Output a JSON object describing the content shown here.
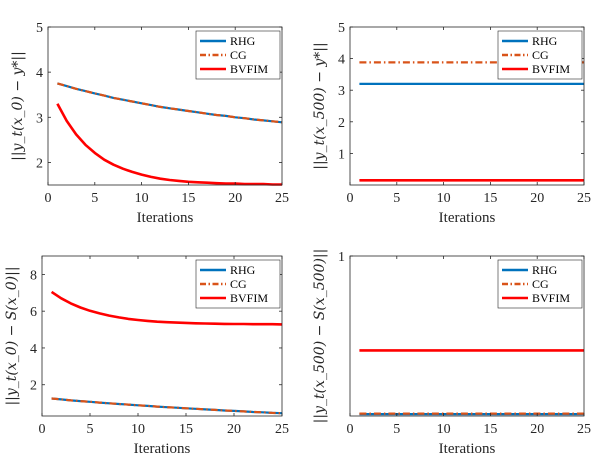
{
  "colors": {
    "RHG": "#0072BD",
    "CG": "#D95319",
    "BVFIM": "#FF0000"
  },
  "chart_data": [
    {
      "type": "line",
      "xlabel": "Iterations",
      "ylabel": "||y_t(x_0) − y*||",
      "xlim": [
        0,
        25
      ],
      "ylim": [
        1.5,
        5
      ],
      "xticks": [
        0,
        5,
        10,
        15,
        20,
        25
      ],
      "yticks": [
        2,
        3,
        4,
        5
      ],
      "legend": "top-right",
      "x": [
        1,
        2,
        3,
        4,
        5,
        6,
        7,
        8,
        9,
        10,
        11,
        12,
        13,
        14,
        15,
        16,
        17,
        18,
        19,
        20,
        21,
        22,
        23,
        24,
        25
      ],
      "series": [
        {
          "name": "RHG",
          "style": "solid",
          "values": [
            3.75,
            3.69,
            3.63,
            3.58,
            3.53,
            3.48,
            3.43,
            3.39,
            3.35,
            3.31,
            3.27,
            3.23,
            3.2,
            3.17,
            3.14,
            3.11,
            3.08,
            3.05,
            3.03,
            3.0,
            2.98,
            2.95,
            2.93,
            2.91,
            2.89
          ]
        },
        {
          "name": "CG",
          "style": "dashdot",
          "values": [
            3.75,
            3.69,
            3.63,
            3.58,
            3.53,
            3.48,
            3.43,
            3.39,
            3.35,
            3.31,
            3.27,
            3.23,
            3.2,
            3.17,
            3.14,
            3.11,
            3.08,
            3.05,
            3.03,
            3.0,
            2.98,
            2.95,
            2.93,
            2.91,
            2.89
          ]
        },
        {
          "name": "BVFIM",
          "style": "solid",
          "values": [
            3.3,
            2.92,
            2.62,
            2.39,
            2.21,
            2.06,
            1.95,
            1.86,
            1.79,
            1.73,
            1.68,
            1.64,
            1.61,
            1.59,
            1.57,
            1.56,
            1.55,
            1.54,
            1.53,
            1.53,
            1.52,
            1.52,
            1.52,
            1.51,
            1.51
          ]
        }
      ]
    },
    {
      "type": "line",
      "xlabel": "Iterations",
      "ylabel": "||y_t(x_500) − y*||",
      "xlim": [
        0,
        25
      ],
      "ylim": [
        0,
        5
      ],
      "xticks": [
        0,
        5,
        10,
        15,
        20,
        25
      ],
      "yticks": [
        1,
        2,
        3,
        4,
        5
      ],
      "legend": "top-right",
      "x": [
        1,
        25
      ],
      "series": [
        {
          "name": "RHG",
          "style": "solid",
          "values": [
            3.2,
            3.2
          ]
        },
        {
          "name": "CG",
          "style": "dashdot",
          "values": [
            3.88,
            3.88
          ]
        },
        {
          "name": "BVFIM",
          "style": "solid",
          "values": [
            0.15,
            0.15
          ]
        }
      ]
    },
    {
      "type": "line",
      "xlabel": "Iterations",
      "ylabel": "||y_t(x_0) − S(x_0)||",
      "xlim": [
        0,
        25
      ],
      "ylim": [
        0.3,
        9
      ],
      "xticks": [
        0,
        5,
        10,
        15,
        20,
        25
      ],
      "yticks": [
        2,
        4,
        6,
        8
      ],
      "legend": "top-right",
      "x": [
        1,
        2,
        3,
        4,
        5,
        6,
        7,
        8,
        9,
        10,
        11,
        12,
        13,
        14,
        15,
        16,
        17,
        18,
        19,
        20,
        21,
        22,
        23,
        24,
        25
      ],
      "series": [
        {
          "name": "RHG",
          "style": "solid",
          "values": [
            1.25,
            1.2,
            1.15,
            1.11,
            1.07,
            1.03,
            0.99,
            0.95,
            0.92,
            0.88,
            0.85,
            0.81,
            0.78,
            0.75,
            0.72,
            0.69,
            0.66,
            0.63,
            0.6,
            0.58,
            0.55,
            0.52,
            0.5,
            0.47,
            0.45
          ]
        },
        {
          "name": "CG",
          "style": "dashdot",
          "values": [
            1.25,
            1.2,
            1.15,
            1.11,
            1.07,
            1.03,
            0.99,
            0.95,
            0.92,
            0.88,
            0.85,
            0.81,
            0.78,
            0.75,
            0.72,
            0.69,
            0.66,
            0.63,
            0.6,
            0.58,
            0.55,
            0.52,
            0.5,
            0.47,
            0.45
          ]
        },
        {
          "name": "BVFIM",
          "style": "solid",
          "values": [
            7.05,
            6.7,
            6.42,
            6.2,
            6.02,
            5.88,
            5.76,
            5.66,
            5.58,
            5.52,
            5.47,
            5.43,
            5.4,
            5.38,
            5.36,
            5.34,
            5.33,
            5.32,
            5.31,
            5.3,
            5.3,
            5.29,
            5.29,
            5.29,
            5.28
          ]
        }
      ]
    },
    {
      "type": "line",
      "xlabel": "Iterations",
      "ylabel": "||y_t(x_500) − S(x_500)||",
      "xlim": [
        0,
        25
      ],
      "ylim": [
        0,
        1
      ],
      "xticks": [
        0,
        5,
        10,
        15,
        20,
        25
      ],
      "yticks": [
        1
      ],
      "legend": "top-right",
      "x": [
        1,
        25
      ],
      "series": [
        {
          "name": "RHG",
          "style": "solid",
          "values": [
            0.012,
            0.012
          ]
        },
        {
          "name": "CG",
          "style": "dashdot",
          "values": [
            0.015,
            0.015
          ]
        },
        {
          "name": "BVFIM",
          "style": "solid",
          "values": [
            0.41,
            0.41
          ]
        }
      ]
    }
  ]
}
